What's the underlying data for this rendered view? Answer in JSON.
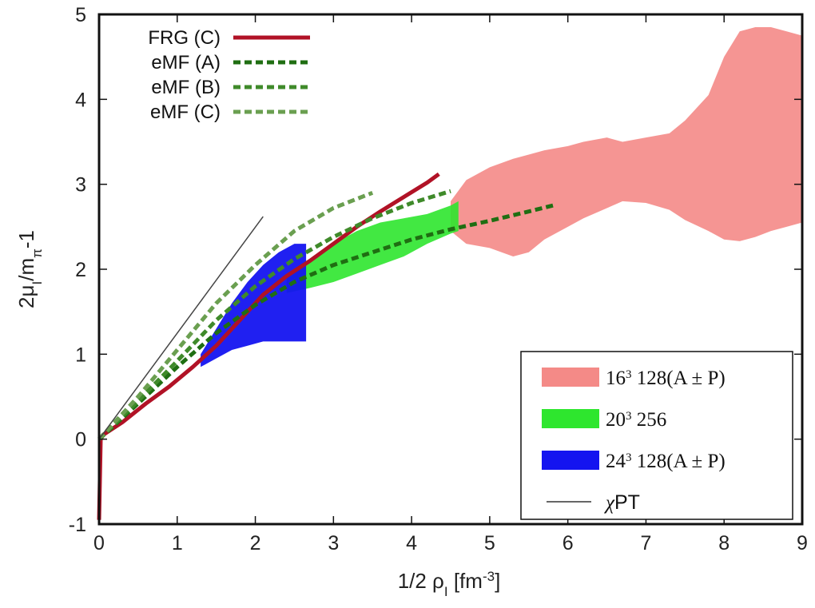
{
  "chart_data": {
    "type": "line",
    "xlabel": "1/2 ρ",
    "xlabel_sub": "I",
    "xlabel_unit_prefix": " [fm",
    "xlabel_unit_sup": "-3",
    "xlabel_unit_suffix": "]",
    "ylabel_prefix": "2μ",
    "ylabel_sub1": "I",
    "ylabel_mid": "/m",
    "ylabel_sub2": "π",
    "ylabel_suffix": "-1",
    "xlim": [
      0,
      9
    ],
    "ylim": [
      -1,
      5
    ],
    "xticks": [
      "0",
      "1",
      "2",
      "3",
      "4",
      "5",
      "6",
      "7",
      "8",
      "9"
    ],
    "yticks": [
      "-1",
      "0",
      "1",
      "2",
      "3",
      "4",
      "5"
    ],
    "grid": false,
    "legend_top_left": [
      {
        "label": "FRG (C)",
        "color": "#b11226",
        "style": "solid"
      },
      {
        "label": "eMF (A)",
        "color": "#1f6e12",
        "style": "dashed"
      },
      {
        "label": "eMF (B)",
        "color": "#3f8a2a",
        "style": "dashed"
      },
      {
        "label": "eMF (C)",
        "color": "#6a9f50",
        "style": "dashed"
      }
    ],
    "legend_bottom_right": [
      {
        "label_base1": "16",
        "label_sup": "3",
        "label_rest": " 128(A ± P)",
        "color": "#f48a87",
        "style": "box"
      },
      {
        "label_base1": "20",
        "label_sup": "3",
        "label_rest": " 256",
        "color": "#2ee62e",
        "style": "box"
      },
      {
        "label_base1": "24",
        "label_sup": "3",
        "label_rest": " 128(A ± P)",
        "color": "#1414f0",
        "style": "box"
      },
      {
        "label_base1": "χ",
        "label_sup": "",
        "label_rest": "PT",
        "color": "#333333",
        "style": "thin"
      }
    ],
    "bands": [
      {
        "name": "16^3 128(A±P)",
        "color": "#f48a87",
        "x": [
          4.5,
          4.7,
          5.0,
          5.3,
          5.5,
          5.7,
          6.0,
          6.2,
          6.5,
          6.7,
          7.0,
          7.3,
          7.5,
          7.8,
          8.0,
          8.2,
          8.4,
          8.6,
          8.8,
          9.0
        ],
        "lower": [
          2.45,
          2.3,
          2.25,
          2.15,
          2.2,
          2.35,
          2.5,
          2.6,
          2.72,
          2.8,
          2.78,
          2.7,
          2.58,
          2.45,
          2.35,
          2.33,
          2.38,
          2.45,
          2.5,
          2.55
        ],
        "upper": [
          2.8,
          3.05,
          3.2,
          3.3,
          3.35,
          3.4,
          3.45,
          3.5,
          3.55,
          3.5,
          3.55,
          3.6,
          3.75,
          4.05,
          4.5,
          4.8,
          4.85,
          4.85,
          4.8,
          4.75
        ]
      },
      {
        "name": "20^3 256",
        "color": "#2ee62e",
        "x": [
          2.4,
          2.7,
          3.0,
          3.3,
          3.6,
          3.9,
          4.2,
          4.5,
          4.6
        ],
        "lower": [
          1.72,
          1.78,
          1.85,
          1.95,
          2.05,
          2.15,
          2.3,
          2.42,
          2.45
        ],
        "upper": [
          1.95,
          2.1,
          2.3,
          2.45,
          2.55,
          2.6,
          2.65,
          2.75,
          2.8
        ]
      },
      {
        "name": "24^3 128(A±P)",
        "color": "#1414f0",
        "x": [
          1.3,
          1.5,
          1.7,
          1.9,
          2.1,
          2.3,
          2.5,
          2.65
        ],
        "lower": [
          0.85,
          0.95,
          1.05,
          1.1,
          1.15,
          1.15,
          1.15,
          1.15
        ],
        "upper": [
          1.0,
          1.3,
          1.6,
          1.85,
          2.05,
          2.2,
          2.3,
          2.3
        ]
      }
    ],
    "series": [
      {
        "name": "FRG (C)",
        "color": "#b11226",
        "width": 5,
        "dash": "",
        "x": [
          0.0,
          0.02,
          0.05,
          0.3,
          0.6,
          0.9,
          1.2,
          1.5,
          1.8,
          2.1,
          2.4,
          2.7,
          3.0,
          3.3,
          3.6,
          3.9,
          4.2,
          4.35
        ],
        "y": [
          -0.95,
          0.0,
          0.05,
          0.2,
          0.42,
          0.62,
          0.85,
          1.1,
          1.4,
          1.7,
          1.92,
          2.1,
          2.3,
          2.5,
          2.68,
          2.85,
          3.02,
          3.12
        ]
      },
      {
        "name": "eMF (A)",
        "color": "#1f6e12",
        "width": 5,
        "dash": "9,5",
        "x": [
          0.0,
          0.5,
          1.0,
          1.5,
          2.0,
          2.5,
          3.0,
          3.5,
          4.0,
          4.5,
          5.0,
          5.5,
          5.85
        ],
        "y": [
          0.0,
          0.42,
          0.85,
          1.25,
          1.58,
          1.85,
          2.05,
          2.2,
          2.35,
          2.47,
          2.57,
          2.68,
          2.76
        ]
      },
      {
        "name": "eMF (B)",
        "color": "#3f8a2a",
        "width": 5,
        "dash": "9,5",
        "x": [
          0.0,
          0.5,
          1.0,
          1.5,
          2.0,
          2.5,
          3.0,
          3.5,
          4.0,
          4.5
        ],
        "y": [
          0.0,
          0.45,
          0.92,
          1.4,
          1.8,
          2.12,
          2.38,
          2.6,
          2.78,
          2.92
        ]
      },
      {
        "name": "eMF (C)",
        "color": "#6a9f50",
        "width": 5,
        "dash": "9,5",
        "x": [
          0.0,
          0.5,
          1.0,
          1.5,
          2.0,
          2.5,
          3.0,
          3.5
        ],
        "y": [
          0.0,
          0.5,
          1.05,
          1.6,
          2.05,
          2.45,
          2.72,
          2.9
        ]
      },
      {
        "name": "χPT",
        "color": "#444444",
        "width": 1.5,
        "dash": "",
        "x": [
          0.0,
          2.1
        ],
        "y": [
          0.0,
          2.62
        ]
      }
    ]
  }
}
